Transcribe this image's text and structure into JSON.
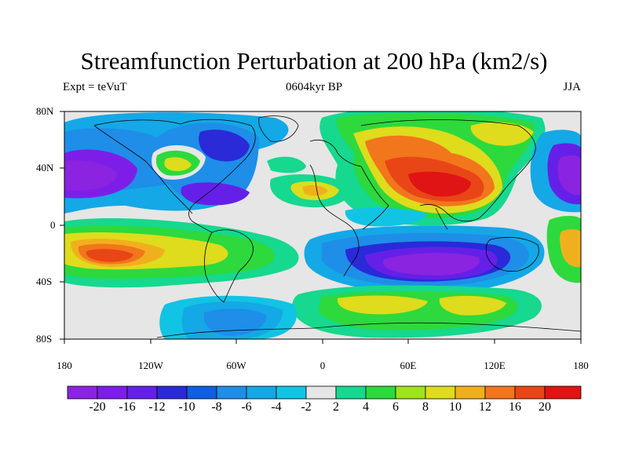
{
  "title": "Streamfunction Perturbation at 200 hPa (km2/s)",
  "left_subtitle": "Expt = teVuT",
  "center_subtitle": "0604kyr BP",
  "right_subtitle": "JJA",
  "axes": {
    "y_ticks": [
      "80N",
      "40N",
      "0",
      "40S",
      "80S"
    ],
    "x_ticks": [
      "180",
      "120W",
      "60W",
      "0",
      "60E",
      "120E",
      "180"
    ]
  },
  "colorbar": {
    "labels": [
      "-20",
      "-16",
      "-12",
      "-10",
      "-8",
      "-6",
      "-4",
      "-2",
      "2",
      "4",
      "6",
      "8",
      "10",
      "12",
      "16",
      "20"
    ],
    "colors": [
      "#8a24e0",
      "#7d1ee8",
      "#6520e8",
      "#2a2ad8",
      "#0f5fe0",
      "#1e8ee8",
      "#14a8e6",
      "#12c4e4",
      "#e6e6e6",
      "#16d88e",
      "#2dd93c",
      "#9ee31c",
      "#dedc1c",
      "#f0b01e",
      "#f2761c",
      "#e84616",
      "#e01414"
    ]
  }
}
